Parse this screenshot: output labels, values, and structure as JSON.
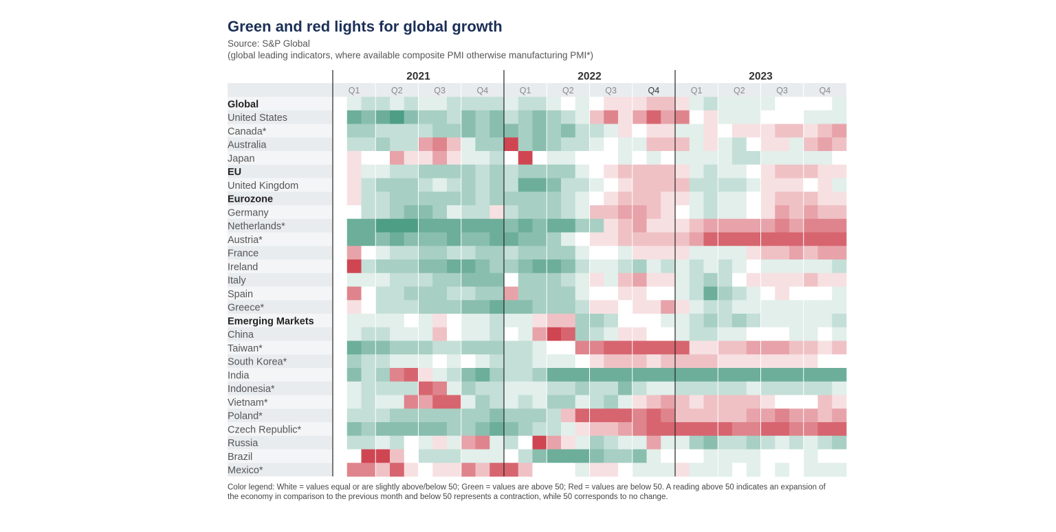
{
  "title": "Green and red lights for global growth",
  "source": "Source: S&P Global",
  "subtitle": "(global leading indicators, where available composite PMI otherwise manufacturing PMI*)",
  "legend_note": "Color legend: White = values equal or are slightly above/below 50; Green = values are above 50; Red = values are below 50. A reading above 50 indicates an expansion of the economy in comparison to the previous month and below 50 represents a contraction, while 50 corresponds to no change.",
  "colors": {
    "green": "#4e9e86",
    "red": "#cf4652",
    "white": "#ffffff",
    "title": "#1b2f57"
  },
  "chart_data": {
    "type": "heatmap",
    "title": "Green and red lights for global growth",
    "value_scale": "deviation of PMI from 50 (index points, approx.)",
    "years": [
      "2021",
      "2022",
      "2023"
    ],
    "quarters": [
      "Q1",
      "Q2",
      "Q3",
      "Q4"
    ],
    "months_per_quarter": 3,
    "rows": [
      {
        "name": "Global",
        "bold": true,
        "values": [
          0,
          1,
          2,
          2,
          1,
          2,
          1,
          1,
          2,
          2,
          2,
          2,
          1,
          2,
          2,
          1,
          0,
          1,
          0,
          -1,
          -1,
          -1,
          -2,
          -2,
          -1,
          1,
          2,
          1,
          1,
          1,
          1,
          0,
          0,
          0,
          0,
          1
        ]
      },
      {
        "name": "United States",
        "bold": false,
        "values": [
          0,
          5,
          4,
          5,
          6,
          4,
          3,
          3,
          2,
          4,
          3,
          4,
          2,
          3,
          4,
          3,
          2,
          1,
          -2,
          -4,
          -1,
          -3,
          -5,
          -3,
          -4,
          0,
          -1,
          1,
          1,
          1,
          0,
          0,
          0,
          1,
          1,
          1
        ]
      },
      {
        "name": "Canada*",
        "bold": false,
        "values": [
          0,
          3,
          3,
          2,
          2,
          2,
          2,
          3,
          3,
          4,
          3,
          4,
          4,
          3,
          4,
          3,
          4,
          2,
          2,
          1,
          -1,
          0,
          -1,
          -1,
          1,
          1,
          -1,
          0,
          -1,
          -1,
          -1,
          -2,
          -2,
          -1,
          -2,
          -3
        ]
      },
      {
        "name": "Australia",
        "bold": false,
        "values": [
          0,
          2,
          2,
          3,
          2,
          2,
          -3,
          -4,
          -2,
          1,
          3,
          3,
          -6,
          3,
          4,
          3,
          2,
          2,
          1,
          0,
          1,
          1,
          -2,
          -2,
          -2,
          1,
          -1,
          1,
          2,
          0,
          -1,
          -1,
          1,
          -2,
          -3,
          -2
        ]
      },
      {
        "name": "Japan",
        "bold": false,
        "values": [
          0,
          -1,
          0,
          0,
          -3,
          -1,
          -1,
          -3,
          -1,
          1,
          1,
          2,
          0,
          -6,
          0,
          1,
          1,
          0,
          0,
          0,
          1,
          0,
          1,
          0,
          1,
          1,
          1,
          1,
          2,
          2,
          1,
          1,
          1,
          1,
          1,
          0
        ]
      },
      {
        "name": "EU",
        "bold": true,
        "values": [
          0,
          -1,
          1,
          1,
          2,
          2,
          3,
          3,
          3,
          3,
          2,
          3,
          2,
          3,
          3,
          3,
          3,
          1,
          0,
          -1,
          -2,
          -2,
          -2,
          -2,
          -1,
          1,
          2,
          1,
          1,
          0,
          -1,
          -2,
          -2,
          -2,
          -1,
          -1
        ]
      },
      {
        "name": "United Kingdom",
        "bold": false,
        "values": [
          0,
          -1,
          2,
          3,
          3,
          3,
          2,
          1,
          2,
          3,
          2,
          3,
          2,
          5,
          5,
          4,
          2,
          2,
          1,
          0,
          -1,
          -2,
          -2,
          -2,
          -2,
          2,
          2,
          2,
          2,
          1,
          -1,
          -1,
          -1,
          0,
          -1,
          1
        ]
      },
      {
        "name": "Eurozone",
        "bold": true,
        "values": [
          0,
          -1,
          2,
          2,
          3,
          3,
          3,
          3,
          3,
          3,
          2,
          3,
          3,
          3,
          3,
          3,
          2,
          1,
          0,
          -1,
          -2,
          -2,
          -2,
          -1,
          -1,
          1,
          2,
          1,
          1,
          0,
          -1,
          -2,
          -2,
          -2,
          -1,
          -1
        ]
      },
      {
        "name": "Germany",
        "bold": false,
        "values": [
          0,
          0,
          2,
          2,
          3,
          4,
          4,
          3,
          1,
          2,
          2,
          -1,
          2,
          3,
          3,
          3,
          2,
          1,
          -2,
          -2,
          -3,
          -3,
          -2,
          -1,
          0,
          1,
          2,
          1,
          1,
          0,
          -1,
          -3,
          -2,
          -3,
          -2,
          -2
        ]
      },
      {
        "name": "Netherlands*",
        "bold": false,
        "values": [
          0,
          5,
          5,
          6,
          6,
          6,
          5,
          5,
          5,
          5,
          5,
          5,
          4,
          5,
          4,
          5,
          5,
          3,
          3,
          -1,
          -2,
          -3,
          -1,
          -1,
          -1,
          -2,
          -3,
          -3,
          -3,
          -3,
          -3,
          -4,
          -3,
          -4,
          -4,
          -4
        ]
      },
      {
        "name": "Austria*",
        "bold": false,
        "values": [
          0,
          5,
          5,
          4,
          5,
          4,
          4,
          4,
          5,
          4,
          4,
          5,
          5,
          4,
          4,
          3,
          1,
          0,
          -1,
          -1,
          -2,
          -2,
          -2,
          -2,
          -2,
          -3,
          -5,
          -5,
          -5,
          -5,
          -5,
          -5,
          -5,
          -5,
          -5,
          -5
        ]
      },
      {
        "name": "France",
        "bold": false,
        "values": [
          0,
          -3,
          0,
          1,
          2,
          2,
          3,
          3,
          2,
          2,
          3,
          3,
          2,
          3,
          3,
          3,
          3,
          1,
          0,
          0,
          1,
          -1,
          -1,
          -1,
          -1,
          1,
          1,
          1,
          1,
          -1,
          -2,
          -2,
          -3,
          -2,
          -3,
          -3
        ]
      },
      {
        "name": "Ireland",
        "bold": false,
        "values": [
          0,
          -6,
          2,
          3,
          3,
          3,
          4,
          4,
          5,
          5,
          4,
          3,
          3,
          4,
          5,
          5,
          4,
          2,
          1,
          1,
          2,
          3,
          1,
          2,
          1,
          2,
          1,
          2,
          1,
          0,
          1,
          1,
          1,
          1,
          1,
          2
        ]
      },
      {
        "name": "Italy",
        "bold": false,
        "values": [
          0,
          1,
          1,
          1,
          2,
          2,
          2,
          3,
          3,
          4,
          4,
          4,
          0,
          3,
          3,
          3,
          2,
          1,
          -1,
          1,
          -2,
          -3,
          -1,
          -1,
          1,
          2,
          3,
          2,
          0,
          -1,
          -1,
          -1,
          -1,
          -2,
          -1,
          -1
        ]
      },
      {
        "name": "Spain",
        "bold": false,
        "values": [
          0,
          -4,
          0,
          2,
          2,
          3,
          3,
          3,
          2,
          2,
          3,
          3,
          -3,
          3,
          3,
          3,
          3,
          1,
          0,
          0,
          -1,
          -1,
          0,
          0,
          1,
          2,
          5,
          3,
          2,
          1,
          0,
          -1,
          0,
          0,
          0,
          1
        ]
      },
      {
        "name": "Greece*",
        "bold": false,
        "values": [
          0,
          -1,
          0,
          2,
          2,
          2,
          3,
          3,
          3,
          4,
          4,
          5,
          4,
          4,
          3,
          3,
          3,
          2,
          -1,
          -1,
          0,
          -1,
          -1,
          -3,
          -1,
          1,
          2,
          2,
          1,
          1,
          1,
          1,
          1,
          1,
          1,
          1
        ]
      },
      {
        "name": "Emerging Markets",
        "bold": true,
        "values": [
          0,
          1,
          1,
          1,
          1,
          0,
          1,
          -1,
          0,
          1,
          1,
          2,
          1,
          1,
          -1,
          -2,
          -2,
          3,
          3,
          2,
          0,
          0,
          0,
          1,
          1,
          2,
          3,
          2,
          3,
          2,
          1,
          1,
          1,
          1,
          1,
          2
        ]
      },
      {
        "name": "China",
        "bold": false,
        "values": [
          0,
          1,
          2,
          2,
          1,
          1,
          1,
          -2,
          0,
          1,
          1,
          2,
          0,
          1,
          -3,
          -6,
          -5,
          3,
          2,
          1,
          -1,
          -1,
          0,
          0,
          1,
          2,
          2,
          1,
          1,
          0,
          0,
          0,
          1,
          1,
          0,
          1
        ]
      },
      {
        "name": "Taiwan*",
        "bold": false,
        "values": [
          0,
          5,
          4,
          4,
          3,
          3,
          3,
          2,
          2,
          3,
          3,
          3,
          2,
          2,
          1,
          0,
          0,
          -4,
          -4,
          -5,
          -5,
          -5,
          -5,
          -5,
          -5,
          -1,
          -1,
          -2,
          -2,
          -3,
          -3,
          -3,
          -2,
          -2,
          -1,
          -2
        ]
      },
      {
        "name": "South Korea*",
        "bold": false,
        "values": [
          0,
          3,
          2,
          2,
          1,
          1,
          1,
          0,
          1,
          0,
          1,
          2,
          2,
          2,
          1,
          1,
          1,
          0,
          -1,
          -2,
          -2,
          -2,
          -1,
          -2,
          -2,
          -2,
          -2,
          -1,
          -1,
          -1,
          -1,
          -1,
          -1,
          -1,
          0,
          0
        ]
      },
      {
        "name": "India",
        "bold": false,
        "values": [
          0,
          4,
          2,
          3,
          -4,
          -5,
          -1,
          1,
          2,
          4,
          5,
          3,
          2,
          2,
          3,
          5,
          5,
          5,
          5,
          5,
          5,
          5,
          5,
          5,
          5,
          5,
          5,
          5,
          5,
          5,
          5,
          5,
          5,
          5,
          5,
          5
        ]
      },
      {
        "name": "Indonesia*",
        "bold": false,
        "values": [
          0,
          1,
          2,
          2,
          2,
          2,
          -5,
          -4,
          1,
          3,
          2,
          2,
          1,
          1,
          1,
          2,
          2,
          3,
          2,
          2,
          4,
          2,
          1,
          1,
          2,
          2,
          2,
          2,
          2,
          1,
          2,
          2,
          2,
          2,
          2,
          1
        ]
      },
      {
        "name": "Vietnam*",
        "bold": false,
        "values": [
          0,
          1,
          2,
          1,
          1,
          -4,
          -3,
          -5,
          -5,
          1,
          3,
          2,
          1,
          2,
          1,
          3,
          3,
          1,
          2,
          3,
          1,
          -1,
          -2,
          -3,
          -2,
          -1,
          -2,
          -2,
          -2,
          -2,
          -1,
          0,
          0,
          0,
          -2,
          -1
        ]
      },
      {
        "name": "Poland*",
        "bold": false,
        "values": [
          0,
          2,
          2,
          2,
          3,
          3,
          3,
          3,
          3,
          3,
          3,
          4,
          3,
          3,
          3,
          2,
          -2,
          -5,
          -5,
          -5,
          -5,
          -4,
          -5,
          -4,
          -2,
          -2,
          -2,
          -2,
          -2,
          -3,
          -3,
          -4,
          -3,
          -3,
          -2,
          -3
        ]
      },
      {
        "name": "Czech Republic*",
        "bold": false,
        "values": [
          0,
          4,
          3,
          4,
          4,
          4,
          4,
          4,
          3,
          3,
          4,
          5,
          4,
          3,
          2,
          2,
          1,
          -1,
          -2,
          -2,
          -3,
          -4,
          -5,
          -5,
          -5,
          -5,
          -5,
          -5,
          -4,
          -4,
          -5,
          -5,
          -4,
          -4,
          -5,
          -5
        ]
      },
      {
        "name": "Russia",
        "bold": false,
        "values": [
          0,
          2,
          2,
          1,
          2,
          0,
          1,
          -1,
          1,
          -3,
          -4,
          1,
          2,
          0,
          -6,
          -3,
          -1,
          1,
          3,
          2,
          1,
          1,
          -3,
          1,
          1,
          3,
          4,
          2,
          2,
          3,
          2,
          1,
          2,
          1,
          2,
          3
        ]
      },
      {
        "name": "Brazil",
        "bold": false,
        "values": [
          0,
          0,
          -6,
          -6,
          -2,
          0,
          2,
          2,
          2,
          1,
          1,
          1,
          0,
          2,
          4,
          5,
          5,
          5,
          4,
          3,
          3,
          4,
          1,
          0,
          0,
          0,
          1,
          1,
          1,
          1,
          0,
          0,
          0,
          1,
          0,
          0
        ]
      },
      {
        "name": "Mexico*",
        "bold": false,
        "values": [
          0,
          -4,
          -4,
          -2,
          -5,
          -1,
          0,
          -1,
          -1,
          -4,
          -2,
          -5,
          -5,
          -2,
          0,
          0,
          0,
          1,
          -1,
          -1,
          0,
          1,
          1,
          1,
          -1,
          1,
          1,
          1,
          0,
          1,
          0,
          1,
          0,
          1,
          1,
          1
        ]
      }
    ]
  }
}
